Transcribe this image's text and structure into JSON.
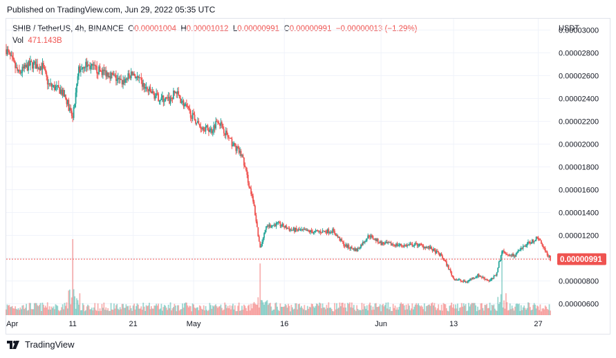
{
  "header": {
    "published": "Published on TradingView.com, Jun 29, 2022 05:35 UTC"
  },
  "legend": {
    "symbol": "SHIB / TetherUS, 4h, BINANCE",
    "open_label": "O",
    "open": "0.00001004",
    "high_label": "H",
    "high": "0.00001012",
    "low_label": "L",
    "low": "0.00000991",
    "close_label": "C",
    "close": "0.00000991",
    "change": "−0.00000013 (−1.29%)",
    "vol_label": "Vol",
    "vol": "471.143B"
  },
  "footer": {
    "brand": "TradingView",
    "logo_icon": "tradingview-logo-icon"
  },
  "colors": {
    "up": "#26a69a",
    "down": "#ef5350",
    "grid": "#f0f3fa",
    "axis_text": "#131722",
    "price_line": "#ef5350"
  },
  "chart_data": {
    "type": "candlestick",
    "title": "SHIB / TetherUS, 4h, BINANCE",
    "currency_label": "USDT",
    "ylim": [
      5e-06,
      3.1e-05
    ],
    "y_ticks": [
      "0.00003000",
      "0.00002800",
      "0.00002600",
      "0.00002400",
      "0.00002200",
      "0.00002000",
      "0.00001800",
      "0.00001600",
      "0.00001400",
      "0.00001200",
      "0.00001000",
      "0.00000800",
      "0.00000600"
    ],
    "y_tick_values": [
      3e-05,
      2.8e-05,
      2.6e-05,
      2.4e-05,
      2.2e-05,
      2e-05,
      1.8e-05,
      1.6e-05,
      1.4e-05,
      1.2e-05,
      1e-05,
      8e-06,
      6e-06
    ],
    "x_range": [
      "2022-03-31",
      "2022-06-29"
    ],
    "x_ticks": [
      {
        "label": "Apr",
        "date": "2022-04-01"
      },
      {
        "label": "11",
        "date": "2022-04-11"
      },
      {
        "label": "21",
        "date": "2022-04-21"
      },
      {
        "label": "May",
        "date": "2022-05-01"
      },
      {
        "label": "16",
        "date": "2022-05-16"
      },
      {
        "label": "Jun",
        "date": "2022-06-01"
      },
      {
        "label": "13",
        "date": "2022-06-13"
      },
      {
        "label": "27",
        "date": "2022-06-27"
      }
    ],
    "current_price": "0.00000991",
    "current_price_value": 9.91e-06,
    "path_points": [
      [
        "2022-03-31",
        2.83e-05
      ],
      [
        "2022-04-02",
        2.62e-05
      ],
      [
        "2022-04-04",
        2.7e-05
      ],
      [
        "2022-04-06",
        2.68e-05
      ],
      [
        "2022-04-07",
        2.52e-05
      ],
      [
        "2022-04-09",
        2.47e-05
      ],
      [
        "2022-04-10",
        2.38e-05
      ],
      [
        "2022-04-11",
        2.22e-05
      ],
      [
        "2022-04-12",
        2.65e-05
      ],
      [
        "2022-04-13",
        2.7e-05
      ],
      [
        "2022-04-15",
        2.65e-05
      ],
      [
        "2022-04-17",
        2.62e-05
      ],
      [
        "2022-04-19",
        2.54e-05
      ],
      [
        "2022-04-21",
        2.62e-05
      ],
      [
        "2022-04-23",
        2.49e-05
      ],
      [
        "2022-04-25",
        2.41e-05
      ],
      [
        "2022-04-27",
        2.38e-05
      ],
      [
        "2022-04-28",
        2.46e-05
      ],
      [
        "2022-04-30",
        2.3e-05
      ],
      [
        "2022-05-02",
        2.16e-05
      ],
      [
        "2022-05-04",
        2.12e-05
      ],
      [
        "2022-05-05",
        2.22e-05
      ],
      [
        "2022-05-07",
        2.03e-05
      ],
      [
        "2022-05-09",
        1.9e-05
      ],
      [
        "2022-05-10",
        1.68e-05
      ],
      [
        "2022-05-11",
        1.45e-05
      ],
      [
        "2022-05-12",
        1.08e-05
      ],
      [
        "2022-05-13",
        1.28e-05
      ],
      [
        "2022-05-15",
        1.3e-05
      ],
      [
        "2022-05-17",
        1.25e-05
      ],
      [
        "2022-05-19",
        1.24e-05
      ],
      [
        "2022-05-21",
        1.23e-05
      ],
      [
        "2022-05-24",
        1.24e-05
      ],
      [
        "2022-05-26",
        1.11e-05
      ],
      [
        "2022-05-28",
        1.07e-05
      ],
      [
        "2022-05-30",
        1.2e-05
      ],
      [
        "2022-06-01",
        1.13e-05
      ],
      [
        "2022-06-03",
        1.12e-05
      ],
      [
        "2022-06-05",
        1.11e-05
      ],
      [
        "2022-06-07",
        1.12e-05
      ],
      [
        "2022-06-09",
        1.09e-05
      ],
      [
        "2022-06-11",
        1.02e-05
      ],
      [
        "2022-06-12",
        9.3e-06
      ],
      [
        "2022-06-13",
        8.2e-06
      ],
      [
        "2022-06-15",
        7.9e-06
      ],
      [
        "2022-06-17",
        8.5e-06
      ],
      [
        "2022-06-19",
        8e-06
      ],
      [
        "2022-06-20",
        8.5e-06
      ],
      [
        "2022-06-21",
        1.06e-05
      ],
      [
        "2022-06-23",
        1.02e-05
      ],
      [
        "2022-06-25",
        1.12e-05
      ],
      [
        "2022-06-27",
        1.18e-05
      ],
      [
        "2022-06-29",
        9.91e-06
      ]
    ],
    "volume_spikes": [
      [
        "2022-04-11",
        1.0
      ],
      [
        "2022-05-12",
        0.68
      ],
      [
        "2022-06-21",
        0.85
      ]
    ]
  }
}
